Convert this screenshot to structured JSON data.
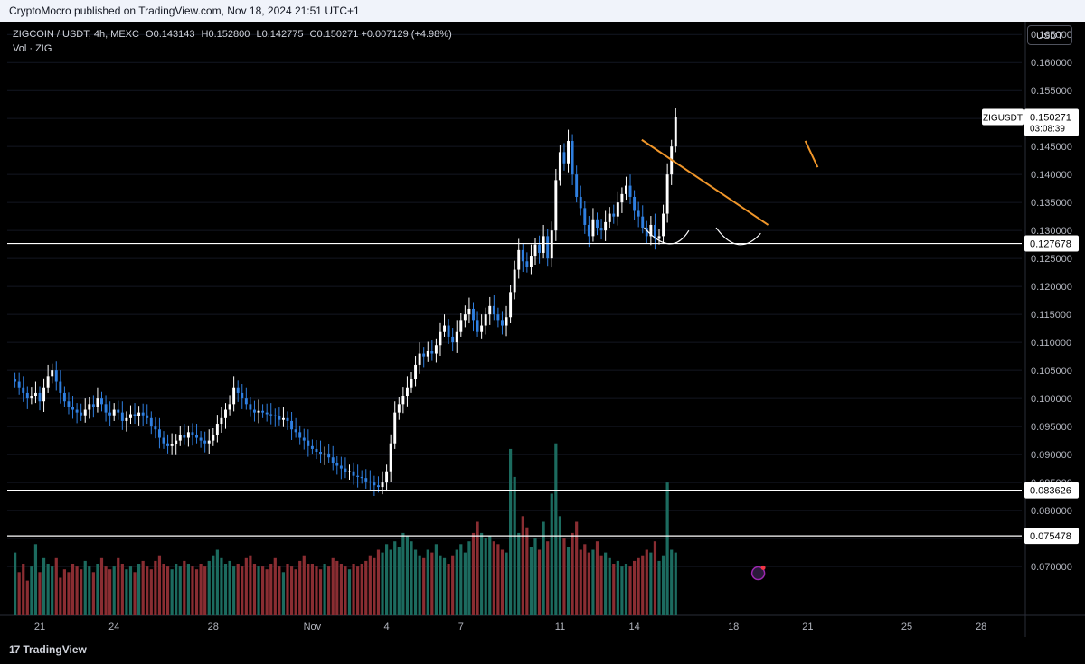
{
  "header": {
    "published_text": "CryptoMocro published on TradingView.com, Nov 18, 2024 21:51 UTC+1"
  },
  "legend": {
    "symbol_line": "ZIGCOIN / USDT, 4h, MEXC",
    "o_label": "O",
    "o_value": "0.143143",
    "h_label": "H",
    "h_value": "0.152800",
    "l_label": "L",
    "l_value": "0.142775",
    "c_label": "C",
    "c_value": "0.150271",
    "change": "+0.007129 (+4.98%)",
    "vol_line": "Vol · ZIG"
  },
  "unit_button": "USDT",
  "footer": {
    "brand": "TradingView",
    "brand_mark": "17"
  },
  "colors": {
    "up": "#ffffff",
    "down": "#2f7fe0",
    "vol_up": "#1c6b5f",
    "vol_down": "#8a2d32",
    "trend": "#f0962a",
    "background": "#000000",
    "grid": "#131722",
    "axis_text": "#b2b5be"
  },
  "chart_data": {
    "type": "candlestick",
    "title": "ZIGCOIN / USDT, 4h, MEXC",
    "ylim": [
      0.0655,
      0.166
    ],
    "y_ticks": [
      "0.165000",
      "0.160000",
      "0.155000",
      "0.150000",
      "0.145000",
      "0.140000",
      "0.135000",
      "0.130000",
      "0.125000",
      "0.120000",
      "0.115000",
      "0.110000",
      "0.105000",
      "0.100000",
      "0.095000",
      "0.090000",
      "0.085000",
      "0.080000",
      "0.075000",
      "0.070000"
    ],
    "x_ticks": [
      {
        "label": "21",
        "day": 0
      },
      {
        "label": "24",
        "day": 3
      },
      {
        "label": "28",
        "day": 7
      },
      {
        "label": "Nov",
        "day": 11
      },
      {
        "label": "4",
        "day": 14
      },
      {
        "label": "7",
        "day": 17
      },
      {
        "label": "11",
        "day": 21
      },
      {
        "label": "14",
        "day": 24
      },
      {
        "label": "18",
        "day": 28
      },
      {
        "label": "21",
        "day": 31
      },
      {
        "label": "25",
        "day": 35
      },
      {
        "label": "28",
        "day": 38
      }
    ],
    "bars_per_day": 6,
    "first_bar_day": -1.0,
    "closes": [
      0.103,
      0.102,
      0.101,
      0.1,
      0.1005,
      0.101,
      0.0995,
      0.102,
      0.104,
      0.105,
      0.103,
      0.101,
      0.0995,
      0.0985,
      0.098,
      0.0975,
      0.097,
      0.098,
      0.099,
      0.0985,
      0.1,
      0.099,
      0.0975,
      0.097,
      0.098,
      0.0975,
      0.096,
      0.0965,
      0.0972,
      0.0968,
      0.0975,
      0.097,
      0.0965,
      0.095,
      0.0945,
      0.093,
      0.092,
      0.0915,
      0.0918,
      0.0925,
      0.0935,
      0.093,
      0.094,
      0.0935,
      0.093,
      0.0925,
      0.092,
      0.0925,
      0.0935,
      0.0955,
      0.0965,
      0.098,
      0.099,
      0.102,
      0.101,
      0.1,
      0.099,
      0.098,
      0.0975,
      0.0978,
      0.0975,
      0.0972,
      0.097,
      0.0968,
      0.0962,
      0.0965,
      0.096,
      0.0945,
      0.094,
      0.093,
      0.0925,
      0.0915,
      0.091,
      0.0905,
      0.09,
      0.0902,
      0.0895,
      0.0885,
      0.088,
      0.0875,
      0.0868,
      0.087,
      0.0862,
      0.086,
      0.0858,
      0.0852,
      0.085,
      0.0845,
      0.0842,
      0.085,
      0.087,
      0.092,
      0.0975,
      0.099,
      0.1005,
      0.102,
      0.1035,
      0.106,
      0.108,
      0.1075,
      0.1085,
      0.108,
      0.1095,
      0.112,
      0.113,
      0.111,
      0.11,
      0.112,
      0.114,
      0.115,
      0.116,
      0.114,
      0.112,
      0.113,
      0.115,
      0.1165,
      0.115,
      0.114,
      0.113,
      0.1145,
      0.119,
      0.123,
      0.1265,
      0.1245,
      0.1235,
      0.1255,
      0.1275,
      0.126,
      0.129,
      0.125,
      0.13,
      0.139,
      0.144,
      0.142,
      0.146,
      0.14,
      0.136,
      0.134,
      0.131,
      0.129,
      0.132,
      0.1305,
      0.13,
      0.1315,
      0.133,
      0.1325,
      0.135,
      0.1365,
      0.138,
      0.136,
      0.1335,
      0.1325,
      0.1305,
      0.129,
      0.131,
      0.1285,
      0.129,
      0.133,
      0.14,
      0.145,
      0.1503
    ],
    "volumes": [
      0.0725,
      0.069,
      0.0705,
      0.0675,
      0.07,
      0.074,
      0.069,
      0.0715,
      0.0705,
      0.07,
      0.0715,
      0.068,
      0.0695,
      0.069,
      0.0705,
      0.07,
      0.0695,
      0.071,
      0.07,
      0.069,
      0.0705,
      0.0715,
      0.07,
      0.0695,
      0.07,
      0.0715,
      0.0705,
      0.0695,
      0.07,
      0.069,
      0.0705,
      0.071,
      0.07,
      0.0695,
      0.071,
      0.072,
      0.0705,
      0.07,
      0.0695,
      0.0705,
      0.07,
      0.071,
      0.0705,
      0.07,
      0.0695,
      0.0705,
      0.07,
      0.071,
      0.072,
      0.073,
      0.0715,
      0.0705,
      0.071,
      0.07,
      0.0705,
      0.07,
      0.0715,
      0.072,
      0.0705,
      0.07,
      0.07,
      0.0695,
      0.0705,
      0.0715,
      0.07,
      0.069,
      0.0705,
      0.07,
      0.0695,
      0.071,
      0.072,
      0.0705,
      0.0705,
      0.07,
      0.0695,
      0.0705,
      0.07,
      0.0715,
      0.071,
      0.0705,
      0.07,
      0.0695,
      0.0705,
      0.07,
      0.0705,
      0.071,
      0.072,
      0.0715,
      0.073,
      0.0725,
      0.074,
      0.073,
      0.0745,
      0.0735,
      0.076,
      0.0755,
      0.0745,
      0.073,
      0.072,
      0.0715,
      0.073,
      0.0725,
      0.074,
      0.072,
      0.0715,
      0.0705,
      0.072,
      0.073,
      0.074,
      0.0725,
      0.0745,
      0.076,
      0.078,
      0.076,
      0.075,
      0.0755,
      0.0745,
      0.074,
      0.073,
      0.0725,
      0.091,
      0.086,
      0.076,
      0.079,
      0.077,
      0.0735,
      0.075,
      0.073,
      0.078,
      0.0745,
      0.083,
      0.092,
      0.079,
      0.075,
      0.0735,
      0.076,
      0.078,
      0.073,
      0.074,
      0.0725,
      0.073,
      0.0745,
      0.072,
      0.0725,
      0.0715,
      0.0705,
      0.071,
      0.07,
      0.0705,
      0.07,
      0.071,
      0.0715,
      0.072,
      0.073,
      0.0725,
      0.0745,
      0.071,
      0.072,
      0.085,
      0.073,
      0.0725
    ],
    "price_lines": [
      {
        "label": "0.127678",
        "value": 0.127678
      },
      {
        "label": "0.083626",
        "value": 0.083626
      },
      {
        "label": "0.075478",
        "value": 0.075478
      }
    ],
    "last_price": {
      "symbol": "ZIGUSDT",
      "value": 0.150271,
      "label": "0.150271",
      "countdown": "03:08:39"
    }
  }
}
